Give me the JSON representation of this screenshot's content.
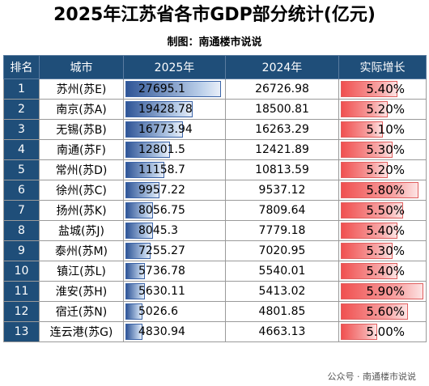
{
  "title": "2025年江苏省各市GDP部分统计(亿元)",
  "credit": "制图：南通楼市说说",
  "headers": [
    "排名",
    "城市",
    "2025年",
    "2024年",
    "实际增长"
  ],
  "footer": "公众号 · 南通楼市说说",
  "colors": {
    "header_bg": "#1f4e79",
    "bar_blue": "#2f5597",
    "bar_red": "#f05050"
  },
  "chart_data": {
    "type": "table",
    "columns": [
      "排名",
      "城市",
      "2025年",
      "2024年",
      "实际增长"
    ],
    "rows": [
      {
        "rank": "1",
        "city": "苏州(苏E)",
        "v2025": "27695.1",
        "v2024": "26726.98",
        "growth": "5.40%"
      },
      {
        "rank": "2",
        "city": "南京(苏A)",
        "v2025": "19428.78",
        "v2024": "18500.81",
        "growth": "5.20%"
      },
      {
        "rank": "3",
        "city": "无锡(苏B)",
        "v2025": "16773.94",
        "v2024": "16263.29",
        "growth": "5.10%"
      },
      {
        "rank": "4",
        "city": "南通(苏F)",
        "v2025": "12801.5",
        "v2024": "12421.89",
        "growth": "5.30%"
      },
      {
        "rank": "5",
        "city": "常州(苏D)",
        "v2025": "11158.7",
        "v2024": "10813.59",
        "growth": "5.20%"
      },
      {
        "rank": "6",
        "city": "徐州(苏C)",
        "v2025": "9957.22",
        "v2024": "9537.12",
        "growth": "5.80%"
      },
      {
        "rank": "7",
        "city": "扬州(苏K)",
        "v2025": "8056.75",
        "v2024": "7809.64",
        "growth": "5.50%"
      },
      {
        "rank": "8",
        "city": "盐城(苏J)",
        "v2025": "8045.3",
        "v2024": "7779.18",
        "growth": "5.40%"
      },
      {
        "rank": "9",
        "city": "泰州(苏M)",
        "v2025": "7255.27",
        "v2024": "7020.95",
        "growth": "5.30%"
      },
      {
        "rank": "10",
        "city": "镇江(苏L)",
        "v2025": "5736.78",
        "v2024": "5540.01",
        "growth": "5.40%"
      },
      {
        "rank": "11",
        "city": "淮安(苏H)",
        "v2025": "5630.11",
        "v2024": "5413.02",
        "growth": "5.90%"
      },
      {
        "rank": "12",
        "city": "宿迁(苏N)",
        "v2025": "5026.6",
        "v2024": "4801.85",
        "growth": "5.60%"
      },
      {
        "rank": "13",
        "city": "连云港(苏G)",
        "v2025": "4830.94",
        "v2024": "4663.13",
        "growth": "5.00%"
      }
    ]
  }
}
